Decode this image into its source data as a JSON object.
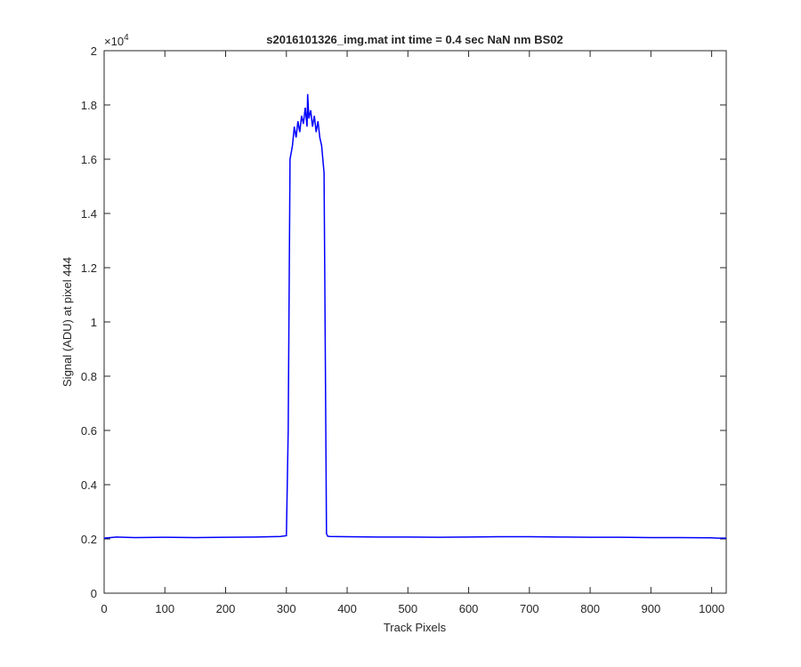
{
  "chart_data": {
    "type": "line",
    "title": "s2016101326_img.mat int time = 0.4 sec  NaN nm BS02",
    "x_label": "Track Pixels",
    "y_label": "Signal (ADU) at pixel 444",
    "y_multiplier": {
      "base": "×10",
      "power": "4"
    },
    "color": "#0000ff",
    "x": [
      0,
      20,
      50,
      100,
      150,
      200,
      250,
      290,
      300,
      303,
      306,
      310,
      313,
      316,
      319,
      322,
      325,
      328,
      331,
      334,
      335,
      337,
      340,
      343,
      346,
      349,
      352,
      355,
      358,
      360,
      362,
      364,
      366,
      368,
      372,
      400,
      450,
      500,
      550,
      600,
      650,
      700,
      750,
      800,
      850,
      900,
      950,
      1000,
      1010,
      1024
    ],
    "values": [
      0.203,
      0.207,
      0.205,
      0.206,
      0.205,
      0.206,
      0.207,
      0.209,
      0.212,
      0.6,
      1.6,
      1.65,
      1.72,
      1.68,
      1.74,
      1.7,
      1.76,
      1.73,
      1.79,
      1.72,
      1.84,
      1.75,
      1.78,
      1.72,
      1.76,
      1.7,
      1.74,
      1.68,
      1.65,
      1.6,
      1.55,
      0.9,
      0.22,
      0.21,
      0.209,
      0.208,
      0.207,
      0.207,
      0.206,
      0.207,
      0.208,
      0.208,
      0.207,
      0.206,
      0.206,
      0.205,
      0.205,
      0.204,
      0.203,
      0.203
    ],
    "xlim": [
      0,
      1024
    ],
    "xticks": [
      0,
      100,
      200,
      300,
      400,
      500,
      600,
      700,
      800,
      900,
      1000
    ],
    "ylim": [
      0,
      2
    ],
    "yticks": [
      0,
      0.2,
      0.4,
      0.6,
      0.8,
      1,
      1.2,
      1.4,
      1.6,
      1.8,
      2
    ]
  }
}
